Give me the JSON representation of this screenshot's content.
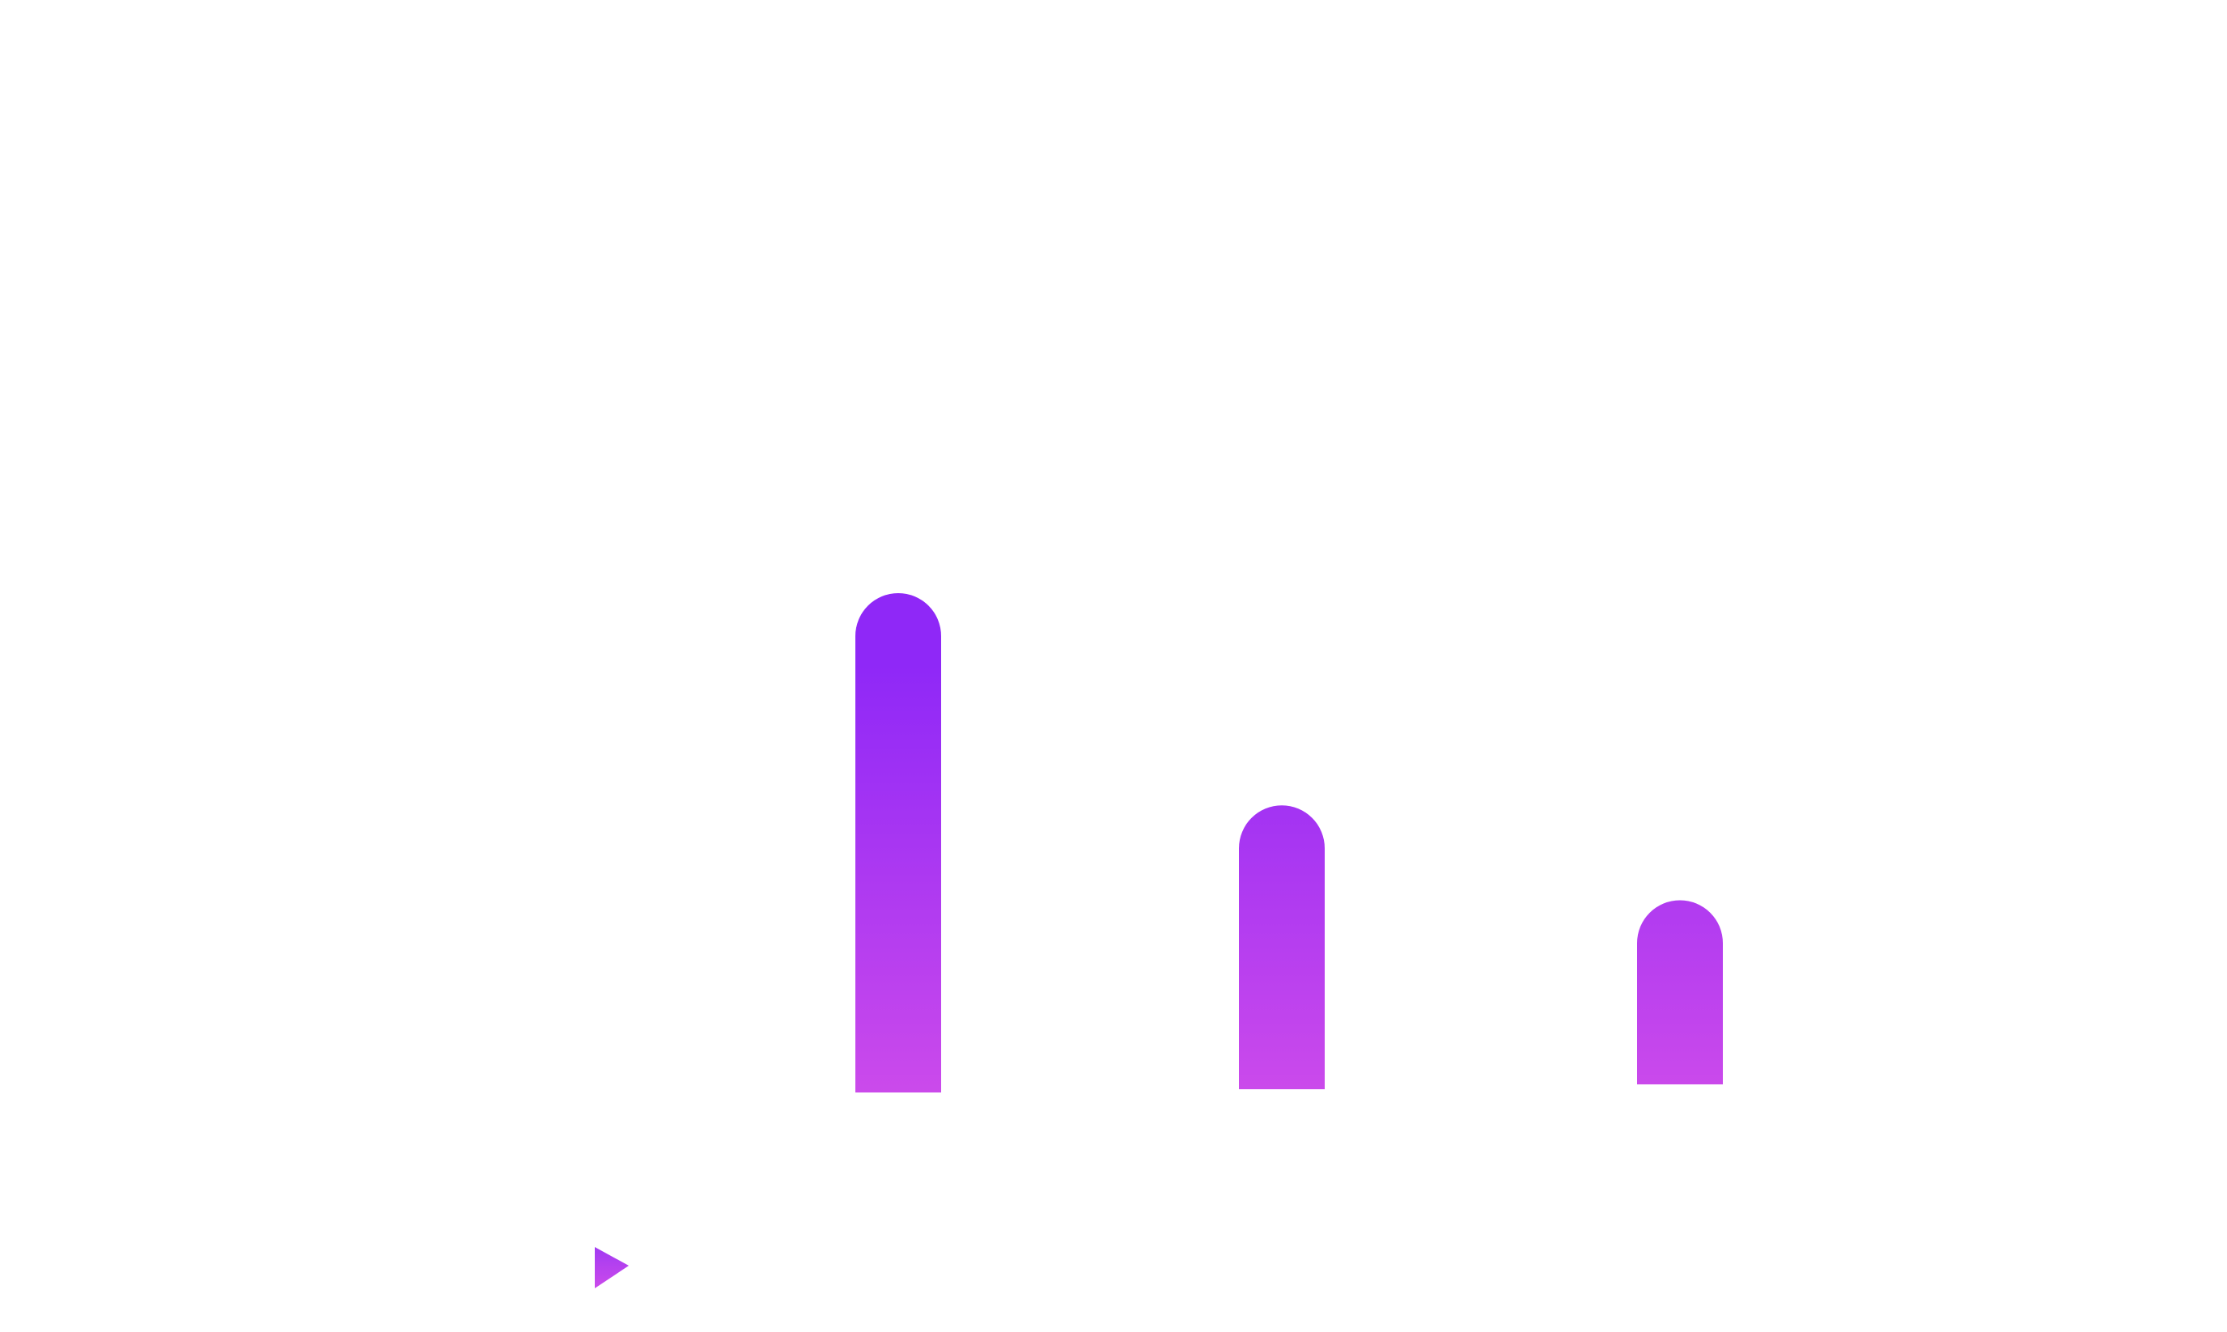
{
  "chart_data": {
    "type": "bar",
    "categories": [
      "",
      "",
      ""
    ],
    "series": [
      {
        "name": "",
        "values": [
          100,
          57.5,
          38.5
        ]
      }
    ],
    "title": "",
    "xlabel": "",
    "ylabel": "",
    "ylim": [
      0,
      100
    ],
    "grid": false,
    "bar_style": "rounded-top",
    "colors": {
      "gradient_top": "#8f28f7",
      "gradient_bottom": "#cb4aeb"
    }
  },
  "marker": {
    "icon": "play-triangle-icon",
    "color_top": "#a23af2",
    "color_bottom": "#cb4aeb"
  }
}
